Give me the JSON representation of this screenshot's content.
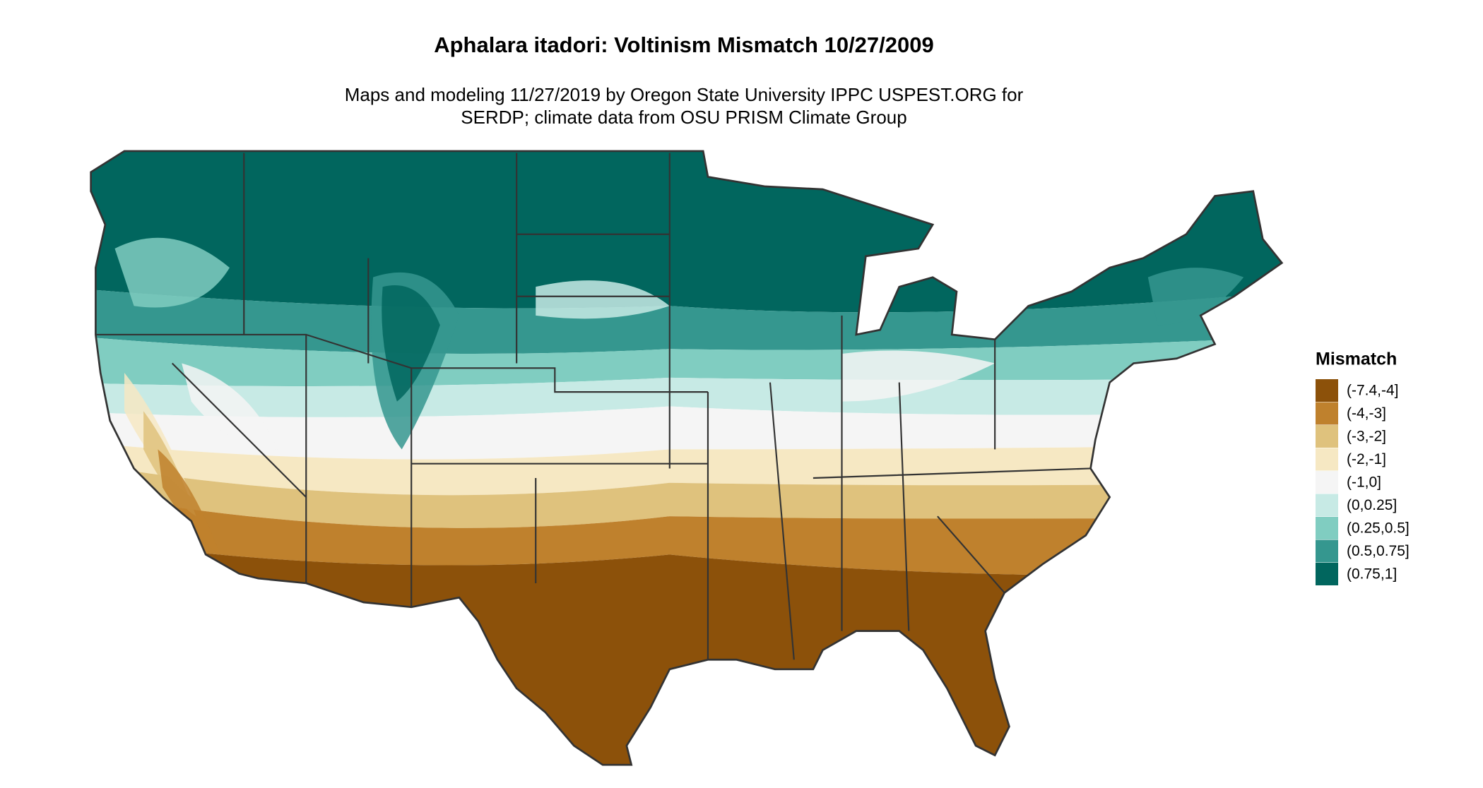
{
  "title": "Aphalara itadori: Voltinism Mismatch 10/27/2009",
  "subtitle": [
    "Maps and modeling 11/27/2019 by Oregon State University IPPC USPEST.ORG for",
    "SERDP; climate data from OSU PRISM Climate Group"
  ],
  "legend": {
    "title": "Mismatch",
    "items": [
      {
        "label": "(-7.4,-4]",
        "color": "#8c510a"
      },
      {
        "label": "(-4,-3]",
        "color": "#bf812d"
      },
      {
        "label": "(-3,-2]",
        "color": "#dfc27d"
      },
      {
        "label": "(-2,-1]",
        "color": "#f6e8c3"
      },
      {
        "label": "(-1,0]",
        "color": "#f5f5f5"
      },
      {
        "label": "(0,0.25]",
        "color": "#c7eae5"
      },
      {
        "label": "(0.25,0.5]",
        "color": "#80cdc1"
      },
      {
        "label": "(0.5,0.75]",
        "color": "#35978f"
      },
      {
        "label": "(0.75,1]",
        "color": "#01665e"
      }
    ]
  }
}
